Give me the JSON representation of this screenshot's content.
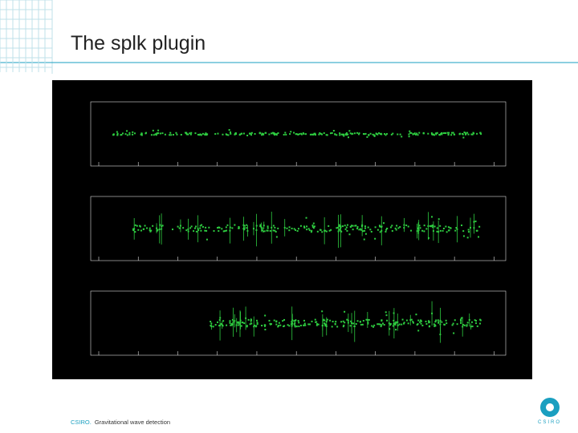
{
  "header": {
    "title": "The splk plugin"
  },
  "footer": {
    "organization": "CSIRO.",
    "text": "Gravitational wave detection"
  },
  "logo": {
    "text": "CSIRO"
  }
}
